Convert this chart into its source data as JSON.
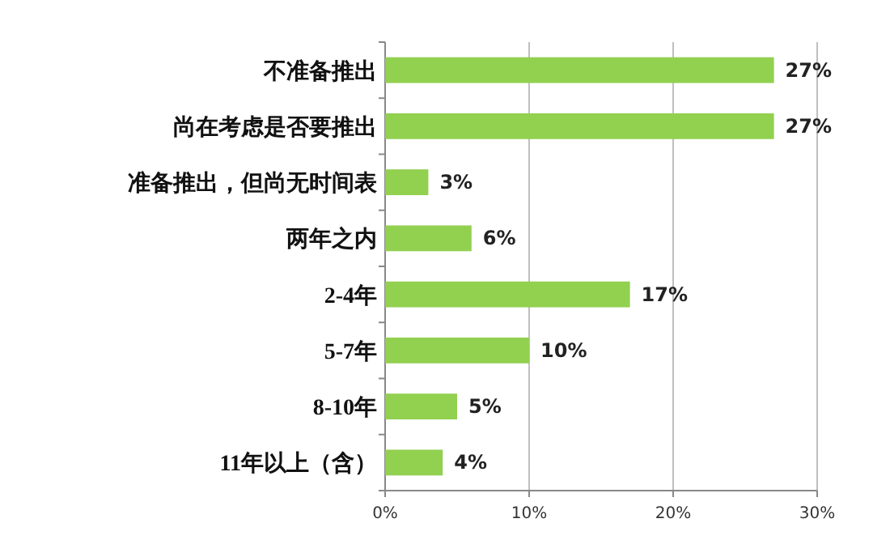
{
  "chart_data": {
    "type": "bar",
    "orientation": "horizontal",
    "categories": [
      "不准备推出",
      "尚在考虑是否要推出",
      "准备推出，但尚无时间表",
      "两年之内",
      "2-4年",
      "5-7年",
      "8-10年",
      "11年以上（含）"
    ],
    "values": [
      27,
      27,
      3,
      6,
      17,
      10,
      5,
      4
    ],
    "value_labels": [
      "27%",
      "27%",
      "3%",
      "6%",
      "17%",
      "10%",
      "5%",
      "4%"
    ],
    "color": "#92d050",
    "xlim": [
      0,
      30
    ],
    "xticks": [
      {
        "value": 0,
        "label": "0%"
      },
      {
        "value": 10,
        "label": "10%"
      },
      {
        "value": 20,
        "label": "20%"
      },
      {
        "value": 30,
        "label": "30%"
      }
    ],
    "grid": "x"
  }
}
